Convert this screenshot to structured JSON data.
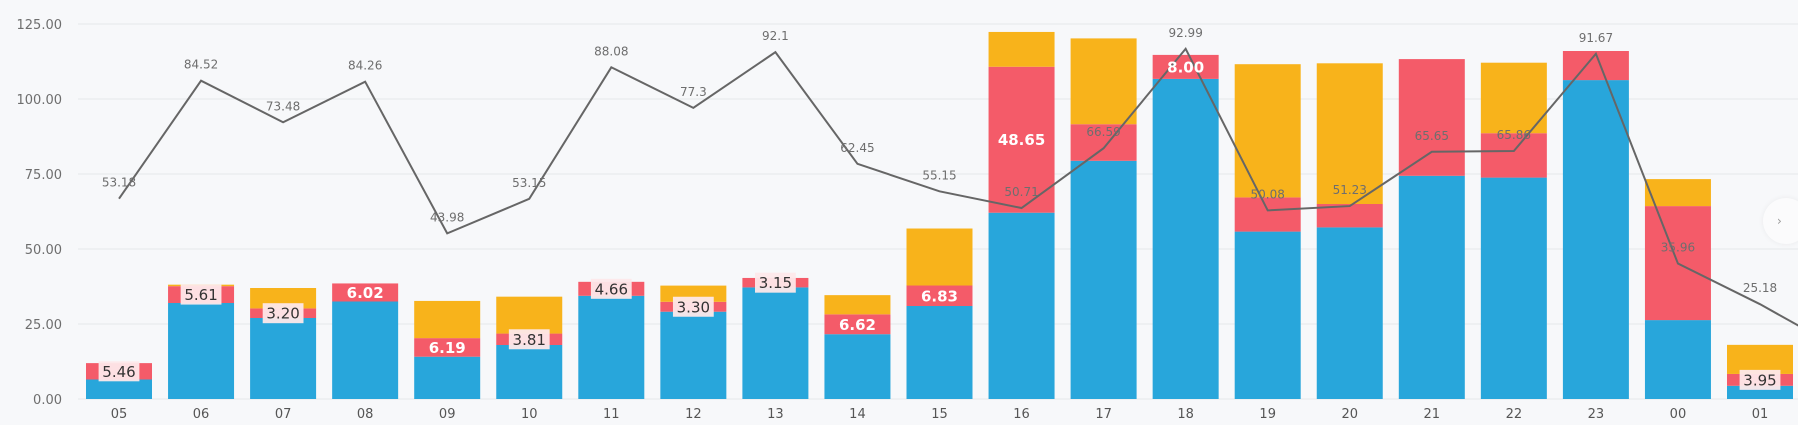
{
  "chart_data": {
    "type": "bar",
    "stacked": true,
    "title": "",
    "xlabel": "",
    "ylabel": "",
    "categories": [
      "05",
      "06",
      "07",
      "08",
      "09",
      "10",
      "11",
      "12",
      "13",
      "14",
      "15",
      "16",
      "17",
      "18",
      "19",
      "20",
      "21",
      "22",
      "23",
      "00",
      "01"
    ],
    "y_left": {
      "ylim": [
        0,
        125
      ],
      "ticks": [
        "0.00",
        "25.00",
        "50.00",
        "75.00",
        "100.00",
        "125.00"
      ]
    },
    "y_right": {
      "ylim": [
        0,
        100
      ],
      "visible": false
    },
    "grid": true,
    "legend": "none",
    "series": [
      {
        "name": "blue",
        "type": "bar",
        "axis": "left",
        "color": "#28a6db",
        "values": [
          6.5,
          32.0,
          27.0,
          32.5,
          14.1,
          18.0,
          34.4,
          29.1,
          37.2,
          21.6,
          31.0,
          62.1,
          79.4,
          106.7,
          55.8,
          57.2,
          74.4,
          73.8,
          106.3,
          26.3,
          4.4
        ]
      },
      {
        "name": "red",
        "type": "bar",
        "axis": "left",
        "color": "#f45b69",
        "values": [
          5.46,
          5.61,
          3.2,
          6.02,
          6.19,
          3.81,
          4.66,
          3.3,
          3.15,
          6.62,
          6.83,
          48.65,
          12.2,
          8.0,
          11.4,
          7.8,
          38.9,
          14.8,
          9.7,
          38.0,
          3.95
        ],
        "labels": [
          "5.46",
          "5.61",
          "3.20",
          "6.02",
          "6.19",
          "3.81",
          "4.66",
          "3.30",
          "3.15",
          "6.62",
          "6.83",
          "48.65",
          "",
          "8.00",
          "",
          "",
          "",
          "",
          "",
          "",
          "3.95"
        ],
        "label_style": [
          "dark",
          "dark",
          "dark",
          "light",
          "light",
          "dark",
          "dark",
          "dark",
          "dark",
          "light",
          "light",
          "light",
          "",
          "light",
          "",
          "",
          "",
          "",
          "",
          "",
          "dark"
        ]
      },
      {
        "name": "orange",
        "type": "bar",
        "axis": "left",
        "color": "#f8b31b",
        "values": [
          0,
          0.5,
          6.8,
          0,
          12.4,
          12.3,
          0,
          5.4,
          0,
          6.4,
          19.0,
          11.6,
          28.6,
          0,
          44.4,
          46.9,
          0,
          23.5,
          0,
          9.0,
          9.7
        ]
      },
      {
        "name": "line",
        "type": "line",
        "axis": "right",
        "color": "#666666",
        "values": [
          53.18,
          84.52,
          73.48,
          84.26,
          43.98,
          53.15,
          88.08,
          77.3,
          92.1,
          62.45,
          55.15,
          50.71,
          66.59,
          92.99,
          50.08,
          51.23,
          65.65,
          65.86,
          91.67,
          35.96,
          25.18
        ],
        "labels": [
          "53.18",
          "84.52",
          "73.48",
          "84.26",
          "43.98",
          "53.15",
          "88.08",
          "77.3",
          "92.1",
          "62.45",
          "55.15",
          "50.71",
          "66.59",
          "92.99",
          "50.08",
          "51.23",
          "65.65",
          "65.86",
          "91.67",
          "35.96",
          "25.18"
        ],
        "continues_offscreen_value": 13.0
      }
    ]
  },
  "nav": {
    "next_icon": "›"
  }
}
